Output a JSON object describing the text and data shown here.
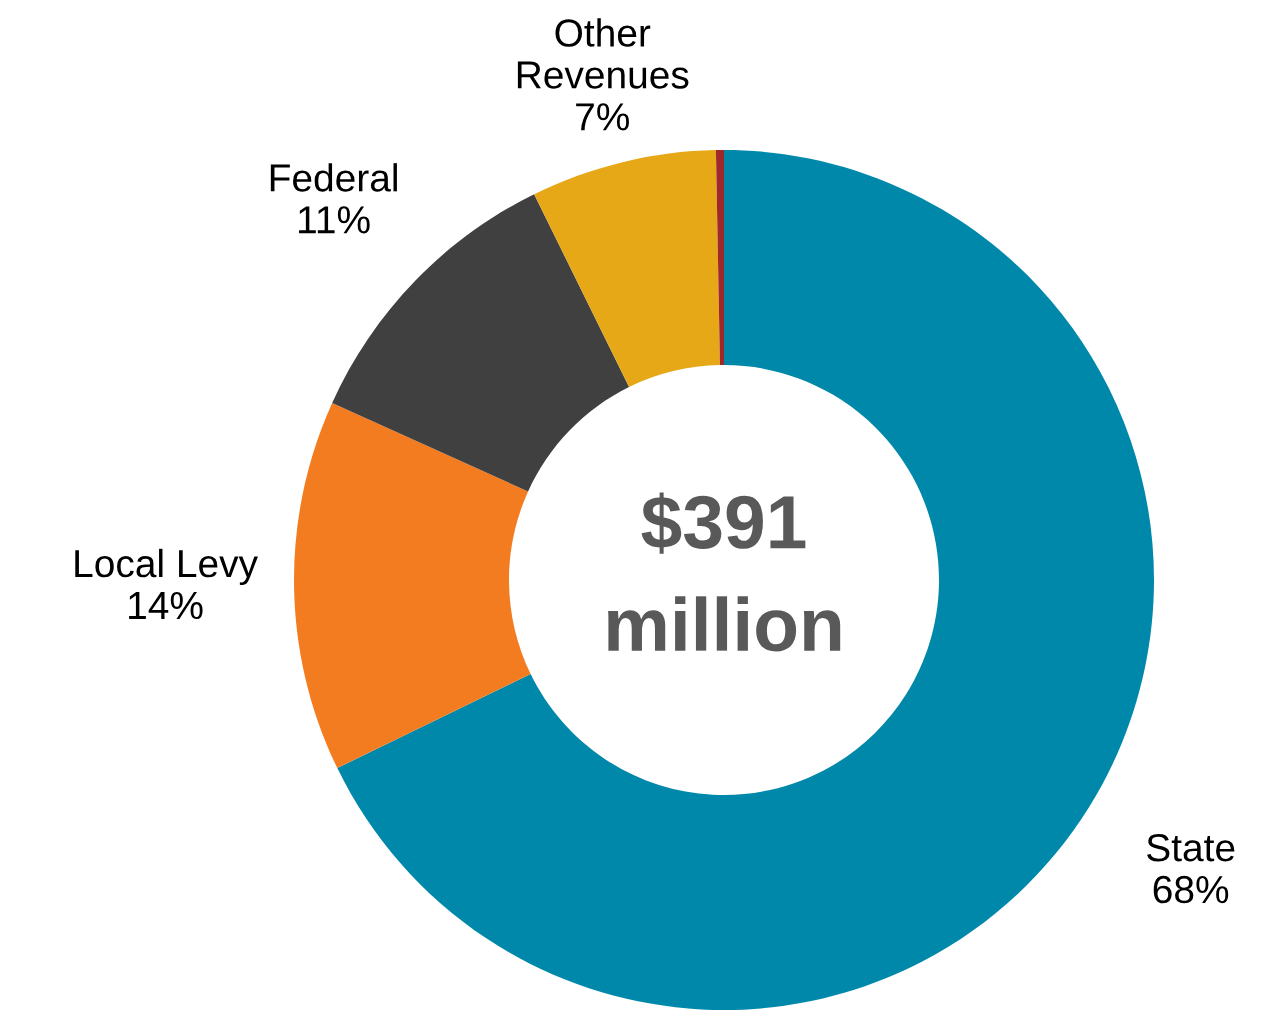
{
  "chart_data": {
    "type": "donut",
    "categories": [
      "State",
      "Local Levy",
      "Federal",
      "Other Revenues",
      null
    ],
    "values": [
      68,
      14,
      11,
      7,
      0.3
    ],
    "colors": [
      "#0088aa",
      "#f47c20",
      "#404040",
      "#e6a817",
      "#a0282a"
    ],
    "value_labels": [
      "68%",
      "14%",
      "11%",
      "7%",
      null
    ],
    "annotations": [
      "$391 million"
    ],
    "legend": false
  }
}
